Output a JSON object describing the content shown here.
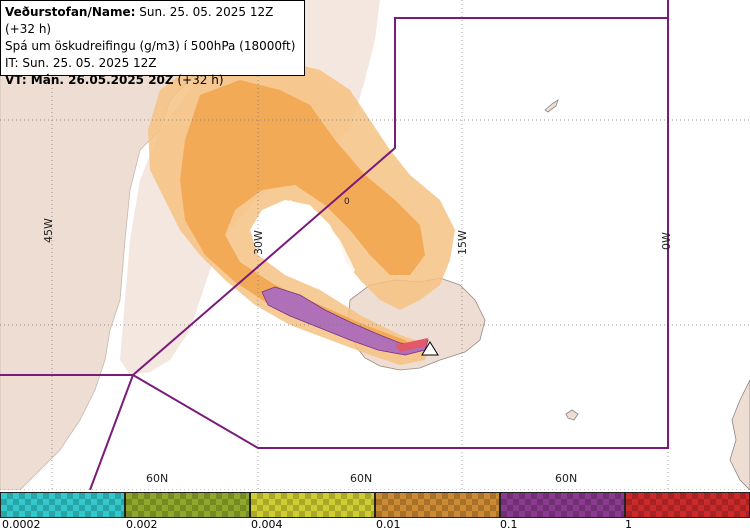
{
  "info": {
    "line1_label": "Veðurstofan/Name:",
    "line1_value": " Sun. 25. 05. 2025 12Z (+32 h)",
    "line2": "Spá um öskudreifingu (g/m3) í 500hPa (18000ft)",
    "line3": "IT: Sun. 25. 05. 2025 12Z",
    "line4_label": "VT: Mán. 26.05.2025 20Z",
    "line4_value": " (+32 h)"
  },
  "map": {
    "lon_labels": [
      "45W",
      "30W",
      "15W",
      "0W"
    ],
    "lat_labels": [
      "60N",
      "60N",
      "60N"
    ],
    "point_label": "0"
  },
  "legend": {
    "ticks": [
      "0.0002",
      "0.002",
      "0.004",
      "0.01",
      "0.1",
      "1"
    ],
    "colors": [
      "#33c9cc",
      "#8fa82a",
      "#cfcd32",
      "#cc8a33",
      "#8a3a8f",
      "#cc2a2a"
    ]
  }
}
